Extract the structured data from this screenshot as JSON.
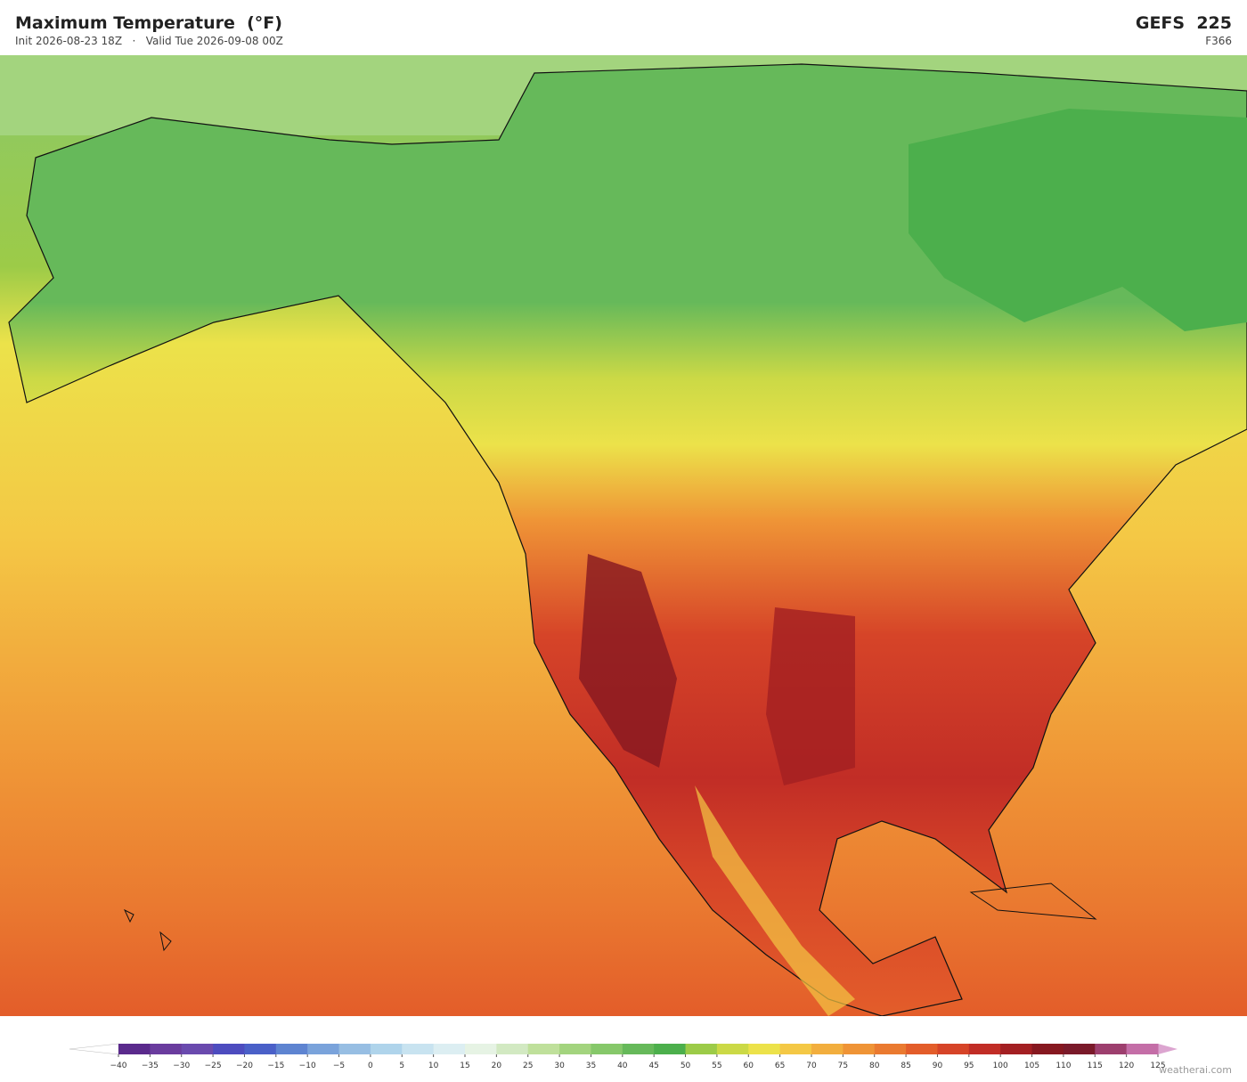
{
  "header": {
    "title": "Maximum Temperature  (°F)",
    "subtitle": "Init 2026-08-23 18Z   ·   Valid Tue 2026-09-08 00Z",
    "model": "GEFS  225",
    "forecast_hour": "F366"
  },
  "colorbar": {
    "ticks": [
      {
        "value": -40,
        "label": "−40"
      },
      {
        "value": -35,
        "label": "−35"
      },
      {
        "value": -30,
        "label": "−30"
      },
      {
        "value": -25,
        "label": "−25"
      },
      {
        "value": -20,
        "label": "−20"
      },
      {
        "value": -15,
        "label": "−15"
      },
      {
        "value": -10,
        "label": "−10"
      },
      {
        "value": -5,
        "label": "−5"
      },
      0,
      5,
      10,
      15,
      20,
      25,
      30,
      35,
      40,
      45,
      50,
      55,
      60,
      65,
      70,
      75,
      80,
      85,
      90,
      95,
      100,
      105,
      110,
      115,
      120,
      125
    ],
    "colors": [
      "#5a2a8c",
      "#6a3c9e",
      "#6a4aae",
      "#4d4cbf",
      "#4a60c8",
      "#5e84d1",
      "#7aa3db",
      "#97bee3",
      "#afd4eb",
      "#c8e3f0",
      "#dceef2",
      "#e6f3e4",
      "#d2e9c2",
      "#bfe09b",
      "#a3d47e",
      "#86c86a",
      "#66b95a",
      "#4caf4c",
      "#9ccb48",
      "#cbd946",
      "#ece24a",
      "#f4c845",
      "#f2ae3e",
      "#ef9436",
      "#ea7a30",
      "#e35d2a",
      "#d64428",
      "#c12d26",
      "#a31f22",
      "#861820",
      "#7a1a2a",
      "#9d3f6e",
      "#c46ea7",
      "#dca5d0"
    ],
    "under_color": "#ffffff",
    "over_color": "#dca5d0"
  },
  "footer": {
    "watermark": "weatherai.com"
  }
}
